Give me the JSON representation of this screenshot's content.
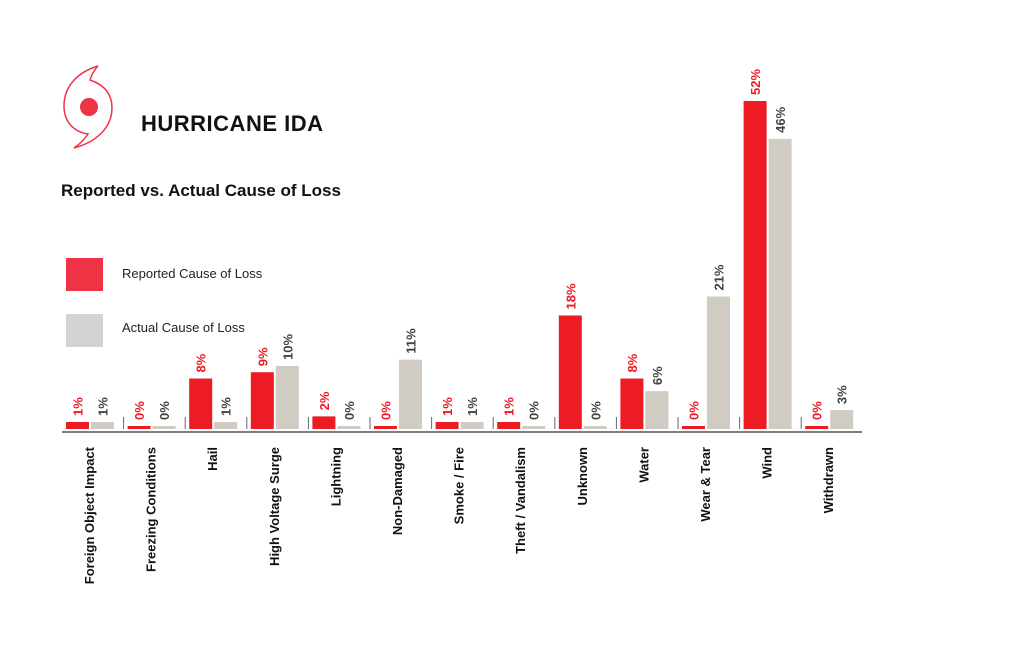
{
  "title": "HURRICANE IDA",
  "subtitle": "Reported vs. Actual Cause of Loss",
  "logo_icon": "hurricane-icon",
  "colors": {
    "reported": "#ed1c24",
    "actual": "#d0ccc3",
    "legend_reported": "#ee3345",
    "legend_actual": "#d3d3d3"
  },
  "legend": [
    {
      "label": "Reported Cause of Loss"
    },
    {
      "label": "Actual Cause of Loss"
    }
  ],
  "chart_data": {
    "type": "bar",
    "title": "Reported vs. Actual Cause of Loss",
    "categories": [
      "Foreign Object Impact",
      "Freezing Conditions",
      "Hail",
      "High Voltage Surge",
      "Lightning",
      "Non-Damaged",
      "Smoke / Fire",
      "Theft / Vandalism",
      "Unknown",
      "Water",
      "Wear & Tear",
      "Wind",
      "Withdrawn"
    ],
    "series": [
      {
        "name": "Reported Cause of Loss",
        "values": [
          1,
          0,
          8,
          9,
          2,
          0,
          1,
          1,
          18,
          8,
          0,
          52,
          0
        ],
        "labels": [
          "1%",
          "0%",
          "8%",
          "9%",
          "2%",
          "0%",
          "1%",
          "1%",
          "18%",
          "8%",
          "0%",
          "52%",
          "0%"
        ]
      },
      {
        "name": "Actual Cause of Loss",
        "values": [
          1,
          0,
          1,
          10,
          0,
          11,
          1,
          0,
          0,
          6,
          21,
          46,
          3
        ],
        "labels": [
          "1%",
          "0%",
          "1%",
          "10%",
          "0%",
          "11%",
          "1%",
          "0%",
          "0%",
          "6%",
          "21%",
          "46%",
          "3%"
        ]
      }
    ],
    "ylim": [
      0,
      52
    ],
    "grid": false,
    "legend_position": "left"
  }
}
